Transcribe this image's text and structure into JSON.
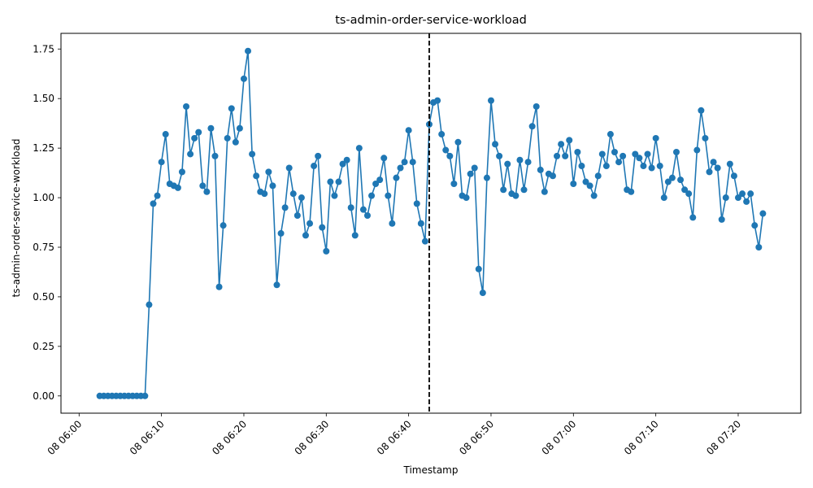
{
  "chart_data": {
    "type": "line",
    "title": "ts-admin-order-service-workload",
    "xlabel": "Timestamp",
    "ylabel": "ts-admin-order-service-workload",
    "ylim": [
      -0.087,
      1.829
    ],
    "yticks": [
      "0.00",
      "0.25",
      "0.50",
      "0.75",
      "1.00",
      "1.25",
      "1.50",
      "1.75"
    ],
    "ytick_values": [
      0,
      0.25,
      0.5,
      0.75,
      1.0,
      1.25,
      1.5,
      1.75
    ],
    "xlim_minutes": [
      -2.2,
      87.6
    ],
    "xticks": [
      "08 06:00",
      "08 06:10",
      "08 06:20",
      "08 06:30",
      "08 06:40",
      "08 06:50",
      "08 07:00",
      "08 07:10",
      "08 07:20"
    ],
    "xtick_minutes": [
      0,
      10,
      20,
      30,
      40,
      50,
      60,
      70,
      80
    ],
    "x_start": "08 06:02:30",
    "x_step_seconds": 30,
    "vline_minutes": 42.5,
    "line_color": "#1f77b4",
    "vline_color": "#000000",
    "grid": false,
    "series": [
      {
        "values": [
          0,
          0,
          0,
          0,
          0,
          0,
          0,
          0,
          0,
          0,
          0,
          0,
          0.46,
          0.97,
          1.01,
          1.18,
          1.32,
          1.07,
          1.06,
          1.05,
          1.13,
          1.46,
          1.22,
          1.3,
          1.33,
          1.06,
          1.03,
          1.35,
          1.21,
          0.55,
          0.86,
          1.3,
          1.45,
          1.28,
          1.35,
          1.6,
          1.74,
          1.22,
          1.11,
          1.03,
          1.02,
          1.13,
          1.06,
          0.56,
          0.82,
          0.95,
          1.15,
          1.02,
          0.91,
          1.0,
          0.81,
          0.87,
          1.16,
          1.21,
          0.85,
          0.73,
          1.08,
          1.01,
          1.08,
          1.17,
          1.19,
          0.95,
          0.81,
          1.25,
          0.94,
          0.91,
          1.01,
          1.07,
          1.09,
          1.2,
          1.01,
          0.87,
          1.1,
          1.15,
          1.18,
          1.34,
          1.18,
          0.97,
          0.87,
          0.78,
          1.37,
          1.48,
          1.49,
          1.32,
          1.24,
          1.21,
          1.07,
          1.28,
          1.01,
          1.0,
          1.12,
          1.15,
          0.64,
          0.52,
          1.1,
          1.49,
          1.27,
          1.21,
          1.04,
          1.17,
          1.02,
          1.01,
          1.19,
          1.04,
          1.18,
          1.36,
          1.46,
          1.14,
          1.03,
          1.12,
          1.11,
          1.21,
          1.27,
          1.21,
          1.29,
          1.07,
          1.23,
          1.16,
          1.08,
          1.06,
          1.01,
          1.11,
          1.22,
          1.16,
          1.32,
          1.23,
          1.18,
          1.21,
          1.04,
          1.03,
          1.22,
          1.2,
          1.16,
          1.22,
          1.15,
          1.3,
          1.16,
          1.0,
          1.08,
          1.1,
          1.23,
          1.09,
          1.04,
          1.02,
          0.9,
          1.24,
          1.44,
          1.3,
          1.13,
          1.18,
          1.15,
          0.89,
          1.0,
          1.17,
          1.11,
          1.0,
          1.02,
          0.98,
          1.02,
          0.86,
          0.75,
          0.92
        ]
      }
    ]
  }
}
